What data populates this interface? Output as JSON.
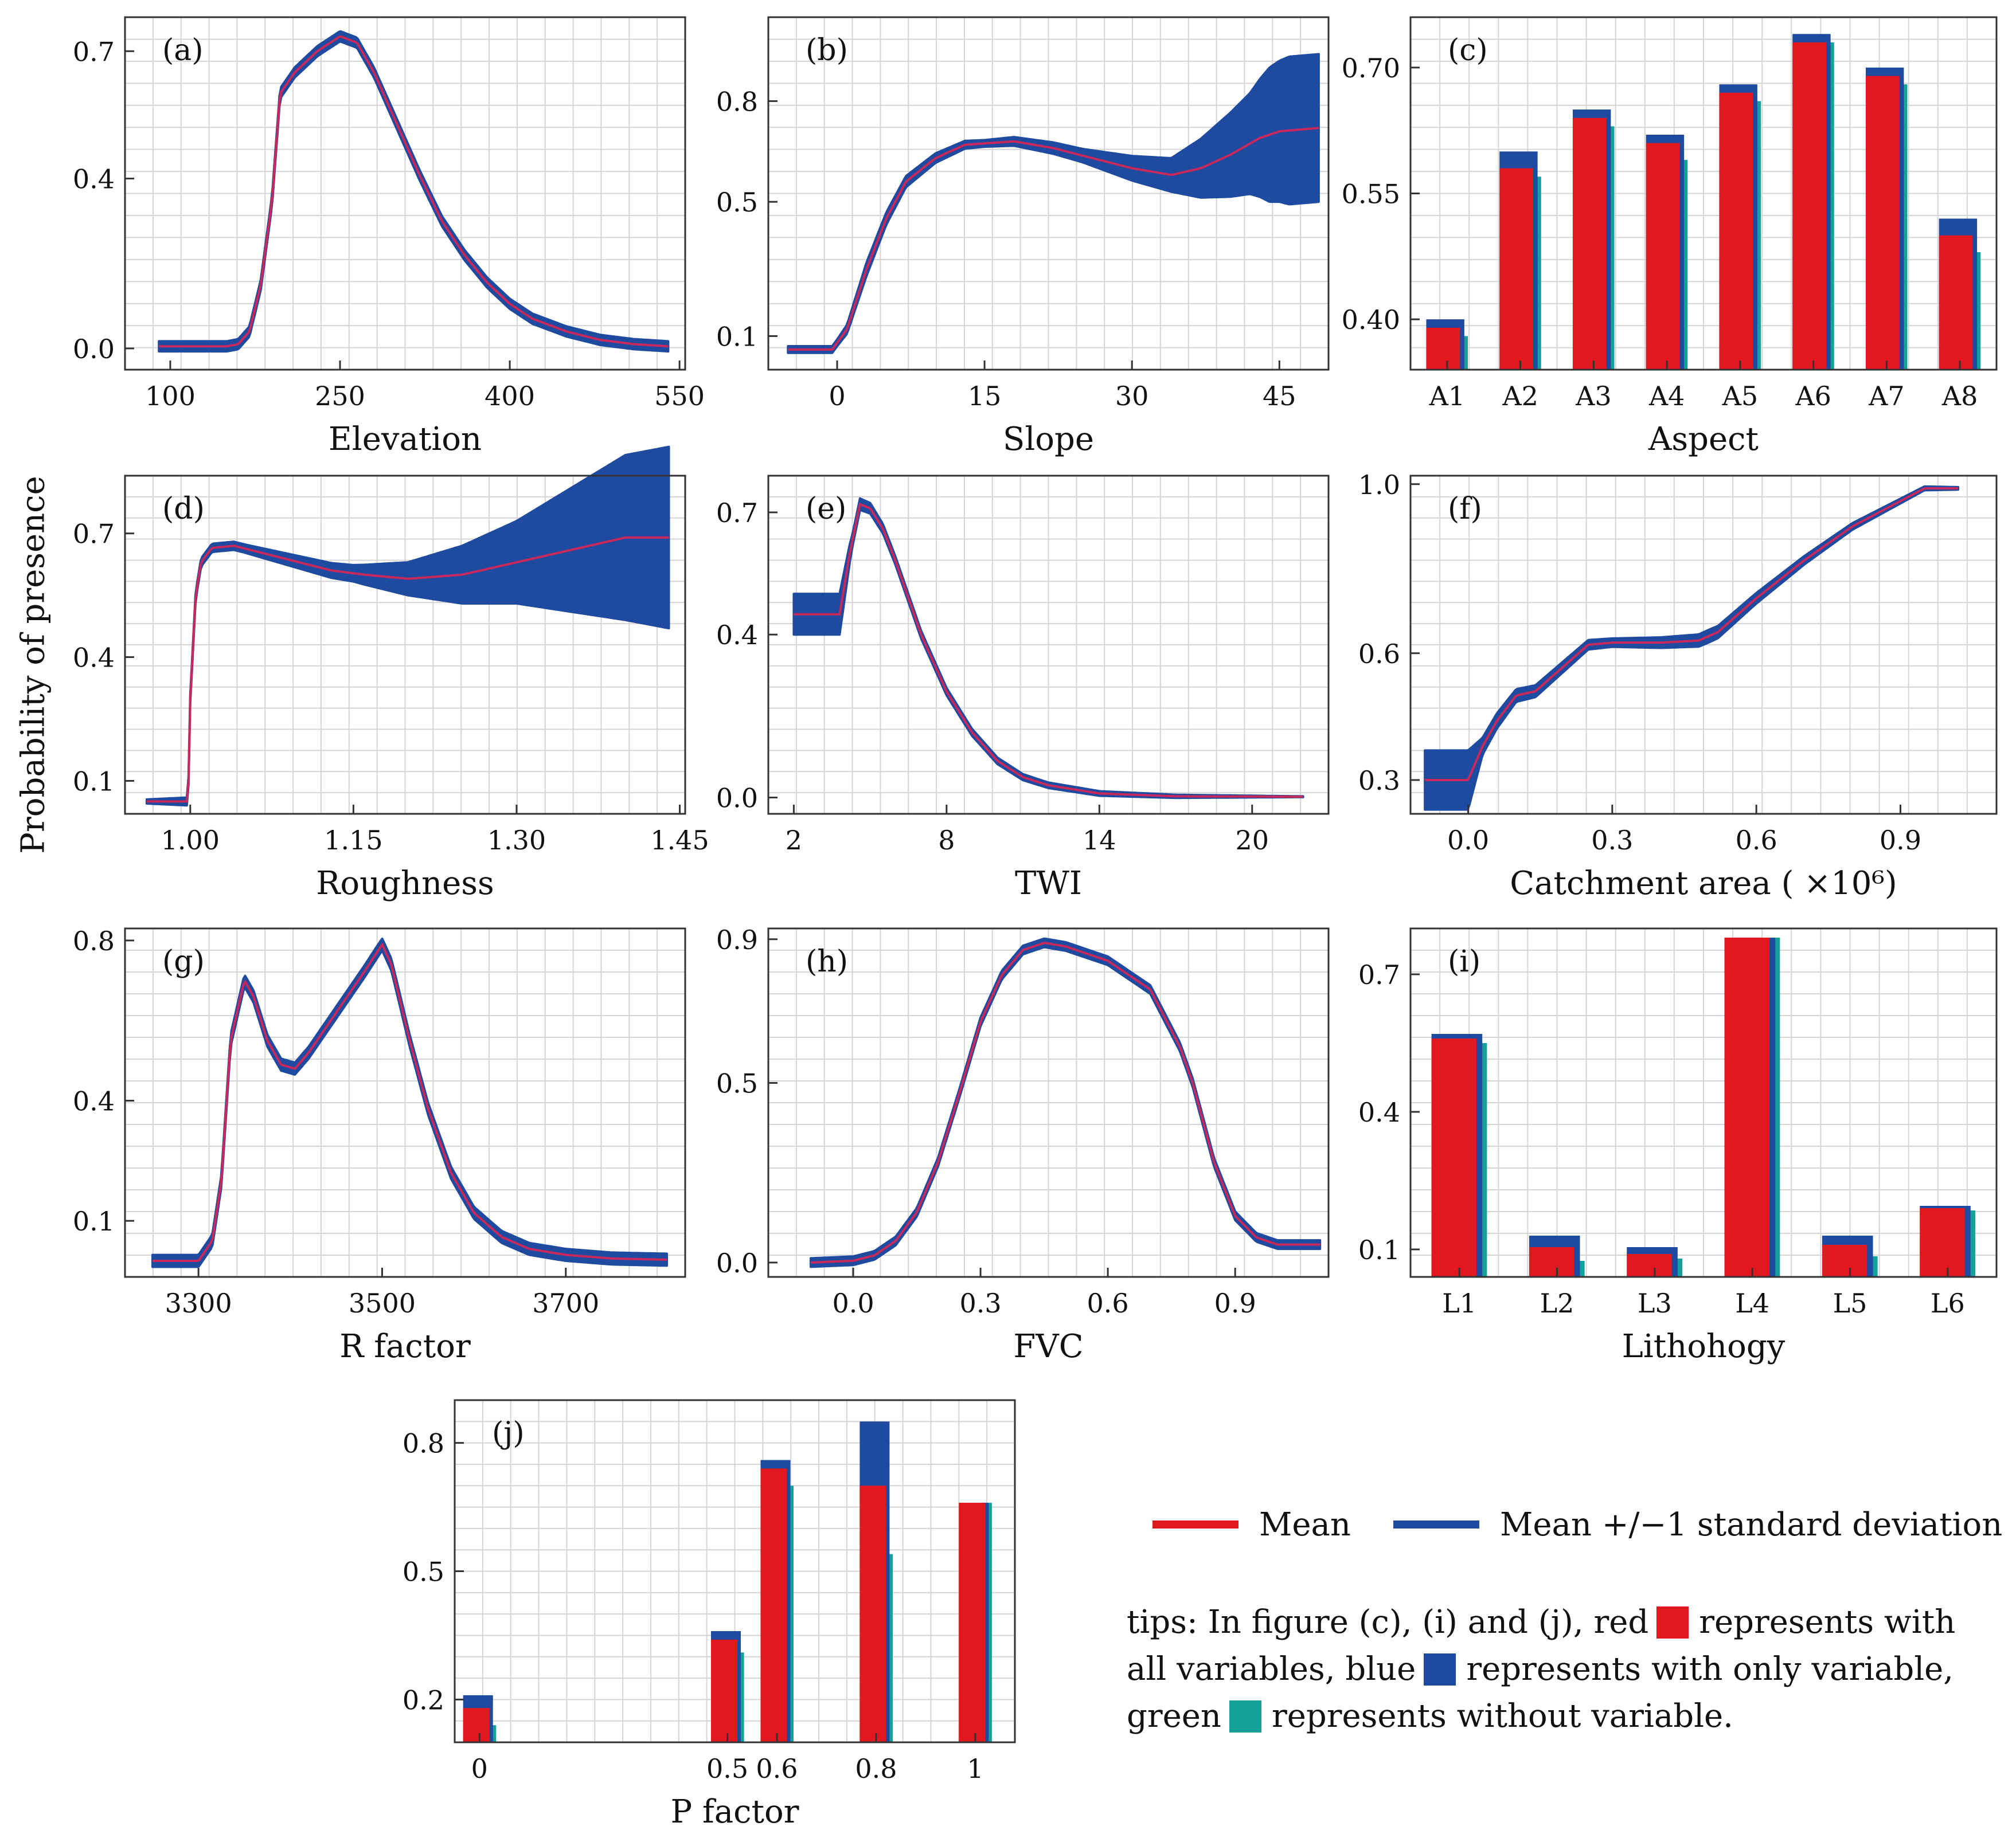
{
  "y_axis_label": "Probability of presence",
  "legend": {
    "mean_label": "Mean",
    "sd_label": "Mean +/−1 standard deviation",
    "mean_color": "#e3181e",
    "sd_color": "#1e4aa0",
    "green_color": "#16a09c"
  },
  "tips": {
    "part1": "tips: In figure (c), (i) and (j), red",
    "part2": "represents with all variables, blue",
    "part3": "represents with only variable, green",
    "part4": "represents without variable."
  },
  "chart_data": [
    {
      "id": "a",
      "type": "line",
      "tag": "(a)",
      "xlabel": "Elevation",
      "xlim": [
        60,
        555
      ],
      "ylim": [
        -0.05,
        0.78
      ],
      "xticks": [
        100,
        250,
        400,
        550
      ],
      "xtick_labels": [
        "100",
        "250",
        "400",
        "550"
      ],
      "yticks": [
        0,
        0.4,
        0.7
      ],
      "ytick_labels": [
        "0.0",
        "0.4",
        "0.7"
      ],
      "mean": [
        [
          90,
          0.005
        ],
        [
          150,
          0.005
        ],
        [
          160,
          0.01
        ],
        [
          170,
          0.04
        ],
        [
          180,
          0.15
        ],
        [
          190,
          0.35
        ],
        [
          197,
          0.6
        ],
        [
          210,
          0.65
        ],
        [
          230,
          0.7
        ],
        [
          250,
          0.735
        ],
        [
          265,
          0.72
        ],
        [
          280,
          0.65
        ],
        [
          300,
          0.53
        ],
        [
          320,
          0.41
        ],
        [
          340,
          0.3
        ],
        [
          360,
          0.22
        ],
        [
          380,
          0.155
        ],
        [
          400,
          0.105
        ],
        [
          420,
          0.07
        ],
        [
          450,
          0.04
        ],
        [
          480,
          0.02
        ],
        [
          510,
          0.01
        ],
        [
          540,
          0.005
        ]
      ],
      "sd": 0.012
    },
    {
      "id": "b",
      "type": "line",
      "tag": "(b)",
      "xlabel": "Slope",
      "xlim": [
        -7,
        50
      ],
      "ylim": [
        0.0,
        1.05
      ],
      "xticks": [
        0,
        15,
        30,
        45
      ],
      "xtick_labels": [
        "0",
        "15",
        "30",
        "45"
      ],
      "yticks": [
        0.1,
        0.5,
        0.8
      ],
      "ytick_labels": [
        "0.1",
        "0.5",
        "0.8"
      ],
      "mean": [
        [
          -5,
          0.06
        ],
        [
          -0.5,
          0.06
        ],
        [
          1,
          0.12
        ],
        [
          3,
          0.3
        ],
        [
          5,
          0.45
        ],
        [
          7,
          0.56
        ],
        [
          10,
          0.63
        ],
        [
          13,
          0.67
        ],
        [
          18,
          0.68
        ],
        [
          22,
          0.66
        ],
        [
          26,
          0.63
        ],
        [
          30,
          0.6
        ],
        [
          34,
          0.58
        ],
        [
          37,
          0.6
        ],
        [
          40,
          0.64
        ],
        [
          43,
          0.69
        ],
        [
          45,
          0.71
        ],
        [
          49,
          0.72
        ]
      ],
      "sd_band": [
        [
          -5,
          0.01
        ],
        [
          0,
          0.01
        ],
        [
          3,
          0.02
        ],
        [
          15,
          0.01
        ],
        [
          25,
          0.02
        ],
        [
          34,
          0.05
        ],
        [
          38,
          0.1
        ],
        [
          42,
          0.15
        ],
        [
          44,
          0.2
        ],
        [
          46,
          0.22
        ],
        [
          49,
          0.22
        ]
      ]
    },
    {
      "id": "c",
      "type": "bar",
      "tag": "(c)",
      "xlabel": "Aspect",
      "categories": [
        "A1",
        "A2",
        "A3",
        "A4",
        "A5",
        "A6",
        "A7",
        "A8"
      ],
      "ylim": [
        0.34,
        0.76
      ],
      "yticks": [
        0.4,
        0.55,
        0.7
      ],
      "ytick_labels": [
        "0.40",
        "0.55",
        "0.70"
      ],
      "series": [
        {
          "name": "all variables",
          "values": [
            0.39,
            0.58,
            0.64,
            0.61,
            0.67,
            0.73,
            0.69,
            0.5
          ]
        },
        {
          "name": "only variable",
          "values": [
            0.4,
            0.6,
            0.65,
            0.62,
            0.68,
            0.74,
            0.7,
            0.52
          ]
        },
        {
          "name": "without variable",
          "values": [
            0.38,
            0.57,
            0.63,
            0.59,
            0.66,
            0.73,
            0.68,
            0.48
          ]
        }
      ]
    },
    {
      "id": "d",
      "type": "line",
      "tag": "(d)",
      "xlabel": "Roughness",
      "xlim": [
        0.94,
        1.455
      ],
      "ylim": [
        0.02,
        0.84
      ],
      "xticks": [
        1.0,
        1.15,
        1.3,
        1.45
      ],
      "xtick_labels": [
        "1.00",
        "1.15",
        "1.30",
        "1.45"
      ],
      "yticks": [
        0.1,
        0.4,
        0.7
      ],
      "ytick_labels": [
        "0.1",
        "0.4",
        "0.7"
      ],
      "mean": [
        [
          0.96,
          0.05
        ],
        [
          0.998,
          0.05
        ],
        [
          1.0,
          0.3
        ],
        [
          1.005,
          0.55
        ],
        [
          1.01,
          0.63
        ],
        [
          1.02,
          0.665
        ],
        [
          1.04,
          0.67
        ],
        [
          1.07,
          0.65
        ],
        [
          1.1,
          0.63
        ],
        [
          1.13,
          0.61
        ],
        [
          1.16,
          0.6
        ],
        [
          1.2,
          0.59
        ],
        [
          1.25,
          0.6
        ],
        [
          1.3,
          0.63
        ],
        [
          1.35,
          0.66
        ],
        [
          1.4,
          0.69
        ],
        [
          1.44,
          0.69
        ]
      ],
      "sd_band": [
        [
          0.96,
          0.005
        ],
        [
          1.0,
          0.01
        ],
        [
          1.05,
          0.01
        ],
        [
          1.1,
          0.015
        ],
        [
          1.15,
          0.02
        ],
        [
          1.2,
          0.04
        ],
        [
          1.25,
          0.07
        ],
        [
          1.3,
          0.1
        ],
        [
          1.35,
          0.15
        ],
        [
          1.4,
          0.2
        ],
        [
          1.44,
          0.22
        ]
      ]
    },
    {
      "id": "e",
      "type": "line",
      "tag": "(e)",
      "xlabel": "TWI",
      "xlim": [
        1.0,
        23.0
      ],
      "ylim": [
        -0.04,
        0.79
      ],
      "xticks": [
        2,
        8,
        14,
        20
      ],
      "xtick_labels": [
        "2",
        "8",
        "14",
        "20"
      ],
      "yticks": [
        0,
        0.4,
        0.7
      ],
      "ytick_labels": [
        "0.0",
        "0.4",
        "0.7"
      ],
      "mean": [
        [
          2,
          0.45
        ],
        [
          3.8,
          0.45
        ],
        [
          4.2,
          0.6
        ],
        [
          4.6,
          0.72
        ],
        [
          5,
          0.71
        ],
        [
          5.5,
          0.66
        ],
        [
          6,
          0.58
        ],
        [
          7,
          0.4
        ],
        [
          8,
          0.26
        ],
        [
          9,
          0.16
        ],
        [
          10,
          0.09
        ],
        [
          11,
          0.05
        ],
        [
          12,
          0.03
        ],
        [
          14,
          0.01
        ],
        [
          17,
          0.003
        ],
        [
          22,
          0.002
        ]
      ],
      "sd_band": [
        [
          2,
          0.05
        ],
        [
          3.8,
          0.05
        ],
        [
          4.3,
          0.015
        ],
        [
          6,
          0.01
        ],
        [
          10,
          0.008
        ],
        [
          22,
          0.001
        ]
      ]
    },
    {
      "id": "f",
      "type": "line",
      "tag": "(f)",
      "xlabel": "Catchment area ( ×10⁶)",
      "xlim": [
        -0.12,
        1.1
      ],
      "ylim": [
        0.22,
        1.02
      ],
      "xticks": [
        0,
        0.3,
        0.6,
        0.9
      ],
      "xtick_labels": [
        "0.0",
        "0.3",
        "0.6",
        "0.9"
      ],
      "yticks": [
        0.3,
        0.6,
        1.0
      ],
      "ytick_labels": [
        "0.3",
        "0.6",
        "1.0"
      ],
      "mean": [
        [
          -0.09,
          0.3
        ],
        [
          0,
          0.3
        ],
        [
          0.03,
          0.38
        ],
        [
          0.06,
          0.44
        ],
        [
          0.1,
          0.5
        ],
        [
          0.14,
          0.51
        ],
        [
          0.2,
          0.57
        ],
        [
          0.25,
          0.62
        ],
        [
          0.3,
          0.625
        ],
        [
          0.4,
          0.625
        ],
        [
          0.48,
          0.63
        ],
        [
          0.52,
          0.65
        ],
        [
          0.6,
          0.73
        ],
        [
          0.7,
          0.82
        ],
        [
          0.8,
          0.9
        ],
        [
          0.9,
          0.96
        ],
        [
          0.95,
          0.99
        ],
        [
          1.02,
          0.99
        ]
      ],
      "sd_band": [
        [
          -0.09,
          0.07
        ],
        [
          0,
          0.07
        ],
        [
          0.03,
          0.02
        ],
        [
          0.1,
          0.015
        ],
        [
          0.3,
          0.01
        ],
        [
          0.5,
          0.015
        ],
        [
          0.7,
          0.01
        ],
        [
          1.02,
          0.003
        ]
      ]
    },
    {
      "id": "g",
      "type": "line",
      "tag": "(g)",
      "xlabel": "R factor",
      "xlim": [
        3220,
        3830
      ],
      "ylim": [
        -0.04,
        0.83
      ],
      "xticks": [
        3300,
        3500,
        3700
      ],
      "xtick_labels": [
        "3300",
        "3500",
        "3700"
      ],
      "yticks": [
        0.1,
        0.4,
        0.8
      ],
      "ytick_labels": [
        "0.1",
        "0.4",
        "0.8"
      ],
      "mean": [
        [
          3250,
          0.0
        ],
        [
          3300,
          0.0
        ],
        [
          3315,
          0.05
        ],
        [
          3325,
          0.2
        ],
        [
          3335,
          0.55
        ],
        [
          3350,
          0.7
        ],
        [
          3360,
          0.66
        ],
        [
          3375,
          0.55
        ],
        [
          3390,
          0.49
        ],
        [
          3405,
          0.48
        ],
        [
          3420,
          0.52
        ],
        [
          3450,
          0.62
        ],
        [
          3480,
          0.72
        ],
        [
          3500,
          0.79
        ],
        [
          3510,
          0.74
        ],
        [
          3530,
          0.55
        ],
        [
          3550,
          0.38
        ],
        [
          3575,
          0.22
        ],
        [
          3600,
          0.12
        ],
        [
          3630,
          0.06
        ],
        [
          3660,
          0.03
        ],
        [
          3700,
          0.015
        ],
        [
          3750,
          0.006
        ],
        [
          3810,
          0.003
        ]
      ],
      "sd": 0.015
    },
    {
      "id": "h",
      "type": "line",
      "tag": "(h)",
      "xlabel": "FVC",
      "xlim": [
        -0.2,
        1.12
      ],
      "ylim": [
        -0.04,
        0.93
      ],
      "xticks": [
        0,
        0.3,
        0.6,
        0.9
      ],
      "xtick_labels": [
        "0.0",
        "0.3",
        "0.6",
        "0.9"
      ],
      "yticks": [
        0,
        0.5,
        0.9
      ],
      "ytick_labels": [
        "0.0",
        "0.5",
        "0.9"
      ],
      "mean": [
        [
          -0.1,
          0.0
        ],
        [
          0,
          0.005
        ],
        [
          0.05,
          0.02
        ],
        [
          0.1,
          0.06
        ],
        [
          0.15,
          0.14
        ],
        [
          0.2,
          0.28
        ],
        [
          0.25,
          0.47
        ],
        [
          0.3,
          0.67
        ],
        [
          0.35,
          0.8
        ],
        [
          0.4,
          0.87
        ],
        [
          0.45,
          0.89
        ],
        [
          0.5,
          0.88
        ],
        [
          0.6,
          0.84
        ],
        [
          0.7,
          0.76
        ],
        [
          0.77,
          0.6
        ],
        [
          0.8,
          0.5
        ],
        [
          0.85,
          0.28
        ],
        [
          0.9,
          0.13
        ],
        [
          0.95,
          0.07
        ],
        [
          1.0,
          0.05
        ],
        [
          1.1,
          0.05
        ]
      ],
      "sd": 0.012
    },
    {
      "id": "i",
      "type": "bar",
      "tag": "(i)",
      "xlabel": "Lithohogy",
      "categories": [
        "L1",
        "L2",
        "L3",
        "L4",
        "L5",
        "L6"
      ],
      "ylim": [
        0.04,
        0.8
      ],
      "yticks": [
        0.1,
        0.4,
        0.7
      ],
      "ytick_labels": [
        "0.1",
        "0.4",
        "0.7"
      ],
      "series": [
        {
          "name": "all variables",
          "values": [
            0.56,
            0.105,
            0.09,
            0.78,
            0.11,
            0.19
          ]
        },
        {
          "name": "only variable",
          "values": [
            0.57,
            0.13,
            0.105,
            0.78,
            0.13,
            0.195
          ]
        },
        {
          "name": "without variable",
          "values": [
            0.55,
            0.075,
            0.08,
            0.78,
            0.085,
            0.185
          ]
        }
      ]
    },
    {
      "id": "j",
      "type": "bar",
      "tag": "(j)",
      "xlabel": "P factor",
      "categories": [
        "0",
        "0.5",
        "0.6",
        "0.8",
        "1"
      ],
      "category_x": [
        0,
        0.5,
        0.6,
        0.8,
        1.0
      ],
      "xlim": [
        -0.05,
        1.08
      ],
      "ylim": [
        0.1,
        0.9
      ],
      "yticks": [
        0.2,
        0.5,
        0.8
      ],
      "ytick_labels": [
        "0.2",
        "0.5",
        "0.8"
      ],
      "series": [
        {
          "name": "all variables",
          "values": [
            0.18,
            0.34,
            0.74,
            0.7,
            0.66
          ]
        },
        {
          "name": "only variable",
          "values": [
            0.21,
            0.36,
            0.76,
            0.85,
            0.66
          ]
        },
        {
          "name": "without variable",
          "values": [
            0.14,
            0.31,
            0.7,
            0.54,
            0.66
          ]
        }
      ]
    }
  ]
}
